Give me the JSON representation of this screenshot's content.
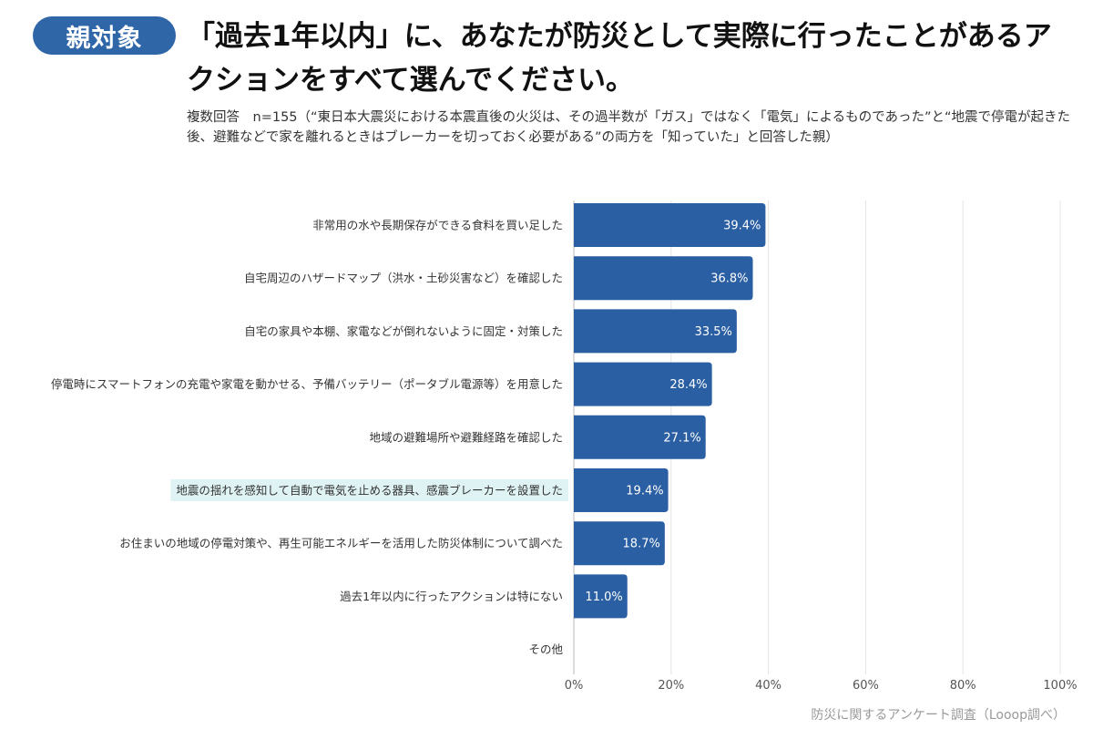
{
  "header": {
    "badge": "親対象",
    "title": "「過去1年以内」に、あなたが防災として実際に行ったことがあるアクションをすべて選んでください。",
    "subtitle": "複数回答　n=155（“東日本大震災における本震直後の火災は、その過半数が「ガス」ではなく「電気」によるものであった”と“地震で停電が起きた後、避難などで家を離れるときはブレーカーを切っておく必要がある”の両方を「知っていた」と回答した親）"
  },
  "chart_data": {
    "type": "bar",
    "orientation": "horizontal",
    "categories": [
      "非常用の水や長期保存ができる食料を買い足した",
      "自宅周辺のハザードマップ（洪水・土砂災害など）を確認した",
      "自宅の家具や本棚、家電などが倒れないように固定・対策した",
      "停電時にスマートフォンの充電や家電を動かせる、予備バッテリー（ポータブル電源等）を用意した",
      "地域の避難場所や避難経路を確認した",
      "地震の揺れを感知して自動で電気を止める器具、感震ブレーカーを設置した",
      "お住まいの地域の停電対策や、再生可能エネルギーを活用した防災体制について調べた",
      "過去1年以内に行ったアクションは特にない",
      "その他"
    ],
    "values": [
      39.4,
      36.8,
      33.5,
      28.4,
      27.1,
      19.4,
      18.7,
      11.0,
      0
    ],
    "value_labels": [
      "39.4%",
      "36.8%",
      "33.5%",
      "28.4%",
      "27.1%",
      "19.4%",
      "18.7%",
      "11.0%",
      ""
    ],
    "highlighted_index": 5,
    "xlim": [
      0,
      100
    ],
    "xticks": [
      "0%",
      "20%",
      "40%",
      "60%",
      "80%",
      "100%"
    ],
    "grid": true,
    "bar_color": "#2b5fa3",
    "highlight_bg": "#dff3f4"
  },
  "footer": {
    "source": "防災に関するアンケート調査（Looop調べ）"
  }
}
